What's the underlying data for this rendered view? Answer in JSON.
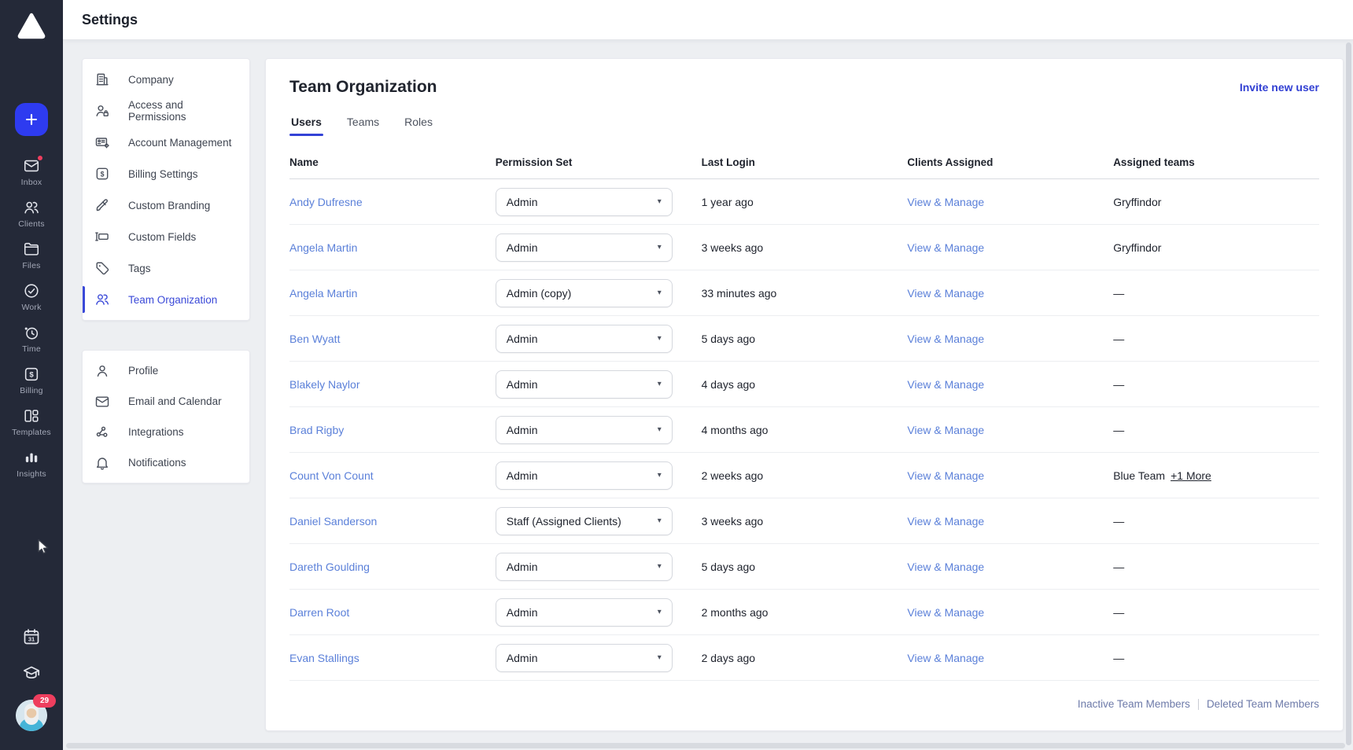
{
  "topbar": {
    "title": "Settings"
  },
  "glyphs": {
    "billing": "$",
    "calendar": "31"
  },
  "sidebar": {
    "items": [
      {
        "id": "inbox",
        "label": "Inbox",
        "icon": "inbox-icon",
        "badge_dot": true
      },
      {
        "id": "clients",
        "label": "Clients",
        "icon": "clients-icon"
      },
      {
        "id": "files",
        "label": "Files",
        "icon": "files-icon"
      },
      {
        "id": "work",
        "label": "Work",
        "icon": "work-icon"
      },
      {
        "id": "time",
        "label": "Time",
        "icon": "time-icon"
      },
      {
        "id": "billing",
        "label": "Billing",
        "icon": "billing-icon"
      },
      {
        "id": "templates",
        "label": "Templates",
        "icon": "templates-icon"
      },
      {
        "id": "insights",
        "label": "Insights",
        "icon": "insights-icon"
      }
    ],
    "bottom": {
      "calendar_icon": "calendar-icon",
      "education_icon": "education-icon",
      "avatar_badge_count": "29"
    }
  },
  "settings_nav": {
    "group1": [
      {
        "id": "company",
        "label": "Company",
        "icon": "company-icon"
      },
      {
        "id": "access-permissions",
        "label": "Access and Permissions",
        "icon": "access-icon"
      },
      {
        "id": "account-management",
        "label": "Account Management",
        "icon": "account-icon"
      },
      {
        "id": "billing-settings",
        "label": "Billing Settings",
        "icon": "billing-icon"
      },
      {
        "id": "custom-branding",
        "label": "Custom Branding",
        "icon": "branding-icon"
      },
      {
        "id": "custom-fields",
        "label": "Custom Fields",
        "icon": "fields-icon"
      },
      {
        "id": "tags",
        "label": "Tags",
        "icon": "tags-icon"
      },
      {
        "id": "team-organization",
        "label": "Team Organization",
        "icon": "team-icon",
        "active": true
      }
    ],
    "group2": [
      {
        "id": "profile",
        "label": "Profile",
        "icon": "profile-icon"
      },
      {
        "id": "email-calendar",
        "label": "Email and Calendar",
        "icon": "email-icon"
      },
      {
        "id": "integrations",
        "label": "Integrations",
        "icon": "integrations-icon"
      },
      {
        "id": "notifications",
        "label": "Notifications",
        "icon": "notifications-icon"
      }
    ]
  },
  "main": {
    "title": "Team Organization",
    "invite_label": "Invite new user",
    "tabs": [
      {
        "id": "users",
        "label": "Users",
        "active": true
      },
      {
        "id": "teams",
        "label": "Teams"
      },
      {
        "id": "roles",
        "label": "Roles"
      }
    ],
    "table": {
      "columns": [
        "Name",
        "Permission Set",
        "Last Login",
        "Clients Assigned",
        "Assigned teams"
      ],
      "rows": [
        {
          "name": "Andy Dufresne",
          "permission": "Admin",
          "last_login": "1 year ago",
          "clients_link": "View & Manage",
          "teams": "Gryffindor"
        },
        {
          "name": "Angela Martin",
          "permission": "Admin",
          "last_login": "3 weeks ago",
          "clients_link": "View & Manage",
          "teams": "Gryffindor"
        },
        {
          "name": "Angela Martin",
          "permission": "Admin (copy)",
          "last_login": "33 minutes ago",
          "clients_link": "View & Manage",
          "teams": "—"
        },
        {
          "name": "Ben Wyatt",
          "permission": "Admin",
          "last_login": "5 days ago",
          "clients_link": "View & Manage",
          "teams": "—"
        },
        {
          "name": "Blakely Naylor",
          "permission": "Admin",
          "last_login": "4 days ago",
          "clients_link": "View & Manage",
          "teams": "—"
        },
        {
          "name": "Brad Rigby",
          "permission": "Admin",
          "last_login": "4 months ago",
          "clients_link": "View & Manage",
          "teams": "—"
        },
        {
          "name": "Count Von Count",
          "permission": "Admin",
          "last_login": "2 weeks ago",
          "clients_link": "View & Manage",
          "teams": "Blue Team",
          "teams_more": "+1 More"
        },
        {
          "name": "Daniel Sanderson",
          "permission": "Staff (Assigned Clients)",
          "last_login": "3 weeks ago",
          "clients_link": "View & Manage",
          "teams": "—"
        },
        {
          "name": "Dareth Goulding",
          "permission": "Admin",
          "last_login": "5 days ago",
          "clients_link": "View & Manage",
          "teams": "—"
        },
        {
          "name": "Darren Root",
          "permission": "Admin",
          "last_login": "2 months ago",
          "clients_link": "View & Manage",
          "teams": "—"
        },
        {
          "name": "Evan Stallings",
          "permission": "Admin",
          "last_login": "2 days ago",
          "clients_link": "View & Manage",
          "teams": "—"
        }
      ]
    },
    "footer": {
      "inactive": "Inactive Team Members",
      "deleted": "Deleted Team Members"
    }
  },
  "colors": {
    "accent": "#2e3bf0",
    "active_nav": "#3a49d8",
    "primary_link": "#3240d3",
    "soft_link": "#5b80d9",
    "badge_red": "#ee3e5e",
    "sidebar_bg": "#242938"
  }
}
